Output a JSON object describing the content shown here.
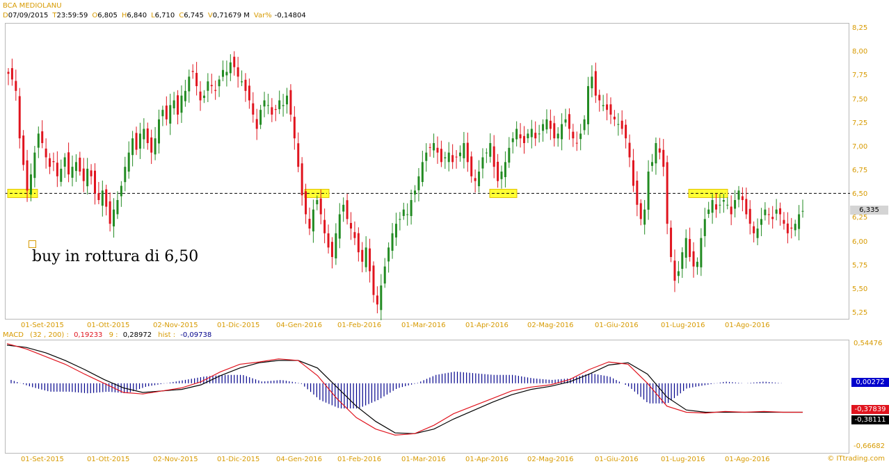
{
  "header": {
    "symbol": "BCA MEDIOLANU",
    "fields": [
      {
        "label": "D",
        "value": "07/09/2015"
      },
      {
        "label": "T",
        "value": "23:59:59"
      },
      {
        "label": "O",
        "value": "6,805"
      },
      {
        "label": "H",
        "value": "6,840"
      },
      {
        "label": "L",
        "value": "6,710"
      },
      {
        "label": "C",
        "value": "6,745"
      },
      {
        "label": "V",
        "value": "0,71679 M"
      },
      {
        "label": "Var%",
        "value": "-0,14804"
      }
    ]
  },
  "macd_header": {
    "name": "MACD",
    "params": "(32 , 200) :",
    "value": "0,19233",
    "signal_label": "9 :",
    "signal_value": "0,28972",
    "hist_label": "hist :",
    "hist_value": "-0,09738"
  },
  "annotation": {
    "text": "buy in rottura di 6,50"
  },
  "watermark": "© ITtrading.com",
  "colors": {
    "up": "#228b22",
    "down": "#e0141e",
    "macd": "#e0141e",
    "signal": "#000000",
    "hist": "#00008b",
    "highlight": "#ffff33",
    "axis_text": "#d79a00"
  },
  "chart_data": [
    {
      "type": "candlestick",
      "title": "BCA MEDIOLANU",
      "y_ticks": [
        "8,25",
        "8,00",
        "7,75",
        "7,50",
        "7,25",
        "7,00",
        "6,75",
        "6,50",
        "6,25",
        "6,00",
        "5,75",
        "5,50",
        "5,25"
      ],
      "ylim": [
        5.25,
        8.25
      ],
      "x_labels": [
        "01-Set-2015",
        "01-Ott-2015",
        "02-Nov-2015",
        "01-Dic-2015",
        "04-Gen-2016",
        "01-Feb-2016",
        "01-Mar-2016",
        "01-Apr-2016",
        "02-Mag-2016",
        "01-Giu-2016",
        "01-Lug-2016",
        "01-Ago-2016"
      ],
      "last_price_label": "6,335",
      "last_price": 6.335,
      "breakout_level": 6.52,
      "closes": [
        7.78,
        7.72,
        7.6,
        7.1,
        6.82,
        6.55,
        6.72,
        6.95,
        7.15,
        7.05,
        6.9,
        6.8,
        6.85,
        6.7,
        6.78,
        6.9,
        6.72,
        6.8,
        6.85,
        6.75,
        6.65,
        6.78,
        6.7,
        6.52,
        6.45,
        6.55,
        6.38,
        6.2,
        6.35,
        6.45,
        6.6,
        6.8,
        6.95,
        7.1,
        6.98,
        7.15,
        7.2,
        7.05,
        6.95,
        7.1,
        7.3,
        7.4,
        7.3,
        7.45,
        7.5,
        7.35,
        7.55,
        7.6,
        7.75,
        7.8,
        7.65,
        7.5,
        7.55,
        7.7,
        7.65,
        7.6,
        7.72,
        7.82,
        7.8,
        7.9,
        7.85,
        7.75,
        7.7,
        7.6,
        7.5,
        7.35,
        7.2,
        7.4,
        7.5,
        7.45,
        7.35,
        7.4,
        7.5,
        7.45,
        7.55,
        7.35,
        7.1,
        6.8,
        6.5,
        6.3,
        6.15,
        6.35,
        6.45,
        6.3,
        6.1,
        5.95,
        5.85,
        6.1,
        6.3,
        6.4,
        6.25,
        6.15,
        6.05,
        5.9,
        5.8,
        5.95,
        5.7,
        5.45,
        5.35,
        5.55,
        5.75,
        5.95,
        6.1,
        6.2,
        6.25,
        6.35,
        6.3,
        6.45,
        6.55,
        6.7,
        6.85,
        6.95,
        7.0,
        7.05,
        6.95,
        6.85,
        6.9,
        6.95,
        6.85,
        6.9,
        6.95,
        7.05,
        6.85,
        6.7,
        6.65,
        6.75,
        6.9,
        6.95,
        7.05,
        6.8,
        6.65,
        6.75,
        6.85,
        7.0,
        7.1,
        7.2,
        7.1,
        7.05,
        7.15,
        7.2,
        7.1,
        7.15,
        7.25,
        7.3,
        7.2,
        7.1,
        7.15,
        7.25,
        7.3,
        7.2,
        7.1,
        7.05,
        7.15,
        7.3,
        7.65,
        7.75,
        7.55,
        7.5,
        7.45,
        7.4,
        7.35,
        7.3,
        7.25,
        7.2,
        7.1,
        6.9,
        6.6,
        6.4,
        6.25,
        6.35,
        6.75,
        6.85,
        7.05,
        6.95,
        6.8,
        6.2,
        5.85,
        5.6,
        5.7,
        5.9,
        6.05,
        5.85,
        5.75,
        5.8,
        6.05,
        6.25,
        6.35,
        6.45,
        6.35,
        6.4,
        6.45,
        6.4,
        6.3,
        6.45,
        6.55,
        6.45,
        6.3,
        6.2,
        6.1,
        6.15,
        6.25,
        6.35,
        6.3,
        6.25,
        6.35,
        6.3,
        6.2,
        6.1,
        6.15,
        6.2,
        6.3,
        6.335
      ],
      "macd_panel": {
        "y_ticks": [
          "0,54476",
          "-0,66682"
        ],
        "ylim": [
          -0.66682,
          0.54476
        ],
        "labels": [
          "0,00272",
          "-0,37839",
          "-0,38111"
        ],
        "macd": [
          0.52,
          0.45,
          0.35,
          0.25,
          0.12,
          0.0,
          -0.12,
          -0.14,
          -0.1,
          -0.06,
          0.02,
          0.15,
          0.25,
          0.28,
          0.32,
          0.3,
          0.1,
          -0.2,
          -0.45,
          -0.6,
          -0.68,
          -0.66,
          -0.55,
          -0.4,
          -0.3,
          -0.2,
          -0.1,
          -0.05,
          -0.02,
          0.05,
          0.18,
          0.28,
          0.25,
          0.0,
          -0.3,
          -0.38,
          -0.39,
          -0.37,
          -0.38,
          -0.37,
          -0.38,
          -0.38
        ],
        "signal": [
          0.5,
          0.47,
          0.4,
          0.3,
          0.18,
          0.05,
          -0.06,
          -0.12,
          -0.1,
          -0.08,
          -0.02,
          0.1,
          0.2,
          0.27,
          0.3,
          0.3,
          0.2,
          -0.05,
          -0.3,
          -0.5,
          -0.65,
          -0.66,
          -0.6,
          -0.47,
          -0.36,
          -0.25,
          -0.15,
          -0.08,
          -0.04,
          0.02,
          0.12,
          0.24,
          0.27,
          0.12,
          -0.18,
          -0.35,
          -0.38,
          -0.38,
          -0.38,
          -0.38,
          -0.38,
          -0.38
        ]
      }
    }
  ]
}
